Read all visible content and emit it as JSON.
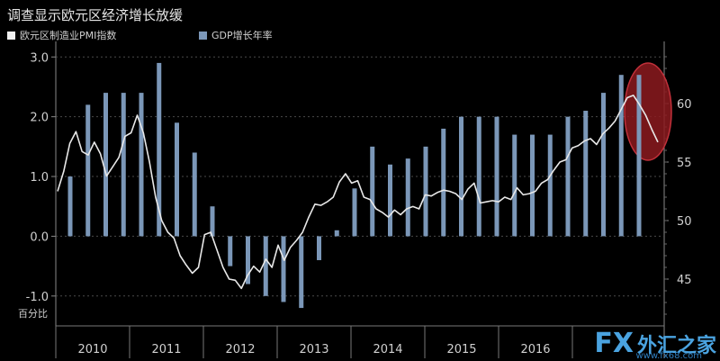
{
  "chart_data": {
    "type": "bar",
    "title": "调查显示欧元区经济增长放缓",
    "unit_label": "百分比",
    "years": [
      "2010",
      "2011",
      "2012",
      "2013",
      "2014",
      "2015",
      "2016"
    ],
    "left_ticks": [
      "3.0",
      "2.0",
      "1.0",
      "0.0",
      "-1.0"
    ],
    "right_ticks": [
      "60",
      "55",
      "50",
      "45"
    ],
    "ylim_left": [
      -1.5,
      3.2
    ],
    "ylim_right": [
      41,
      65
    ],
    "series": [
      {
        "name": "GDP增长年率",
        "kind": "bar",
        "axis": "left",
        "color": "#7b97b8",
        "values": [
          1.0,
          2.2,
          2.4,
          2.4,
          2.4,
          2.9,
          1.9,
          1.4,
          0.5,
          -0.5,
          -0.8,
          -1.0,
          -1.1,
          -1.2,
          -0.4,
          0.1,
          0.8,
          1.5,
          1.2,
          1.3,
          1.5,
          1.8,
          2.0,
          2.0,
          2.0,
          1.7,
          1.7,
          1.7,
          2.0,
          2.1,
          2.4,
          2.7,
          2.7
        ]
      },
      {
        "name": "欧元区制造业PMI指数",
        "kind": "line",
        "axis": "right",
        "color": "#e8e8e8",
        "values": [
          52.5,
          54.2,
          56.6,
          57.6,
          55.9,
          55.6,
          56.7,
          55.7,
          53.8,
          54.6,
          55.4,
          57.2,
          57.5,
          59.0,
          57.5,
          55.0,
          52.0,
          50.0,
          49.0,
          48.5,
          47.0,
          46.2,
          45.5,
          46.0,
          48.8,
          49.0,
          47.5,
          46.0,
          45.0,
          44.9,
          44.2,
          45.3,
          46.1,
          45.6,
          46.7,
          46.0,
          47.9,
          46.6,
          47.7,
          48.3,
          49.0,
          50.3,
          51.4,
          51.3,
          51.6,
          52.0,
          53.3,
          54.0,
          53.2,
          53.4,
          52.0,
          51.8,
          51.0,
          50.7,
          50.3,
          50.9,
          50.5,
          51.0,
          51.2,
          51.0,
          52.2,
          52.1,
          52.4,
          52.6,
          52.5,
          52.3,
          51.8,
          52.7,
          53.2,
          51.5,
          51.6,
          51.7,
          51.6,
          52.0,
          51.8,
          52.8,
          52.2,
          52.3,
          52.5,
          53.2,
          53.5,
          54.3,
          55.0,
          55.2,
          56.2,
          56.4,
          56.8,
          57.0,
          56.5,
          57.4,
          57.9,
          58.5,
          59.5,
          60.5,
          60.7,
          59.9,
          59.0,
          57.8,
          56.7
        ]
      }
    ],
    "highlight_color": "#8c1a1f"
  },
  "watermark": {
    "fx": "FX",
    "cn": "外汇之家",
    "url": "www.fx68.com"
  }
}
